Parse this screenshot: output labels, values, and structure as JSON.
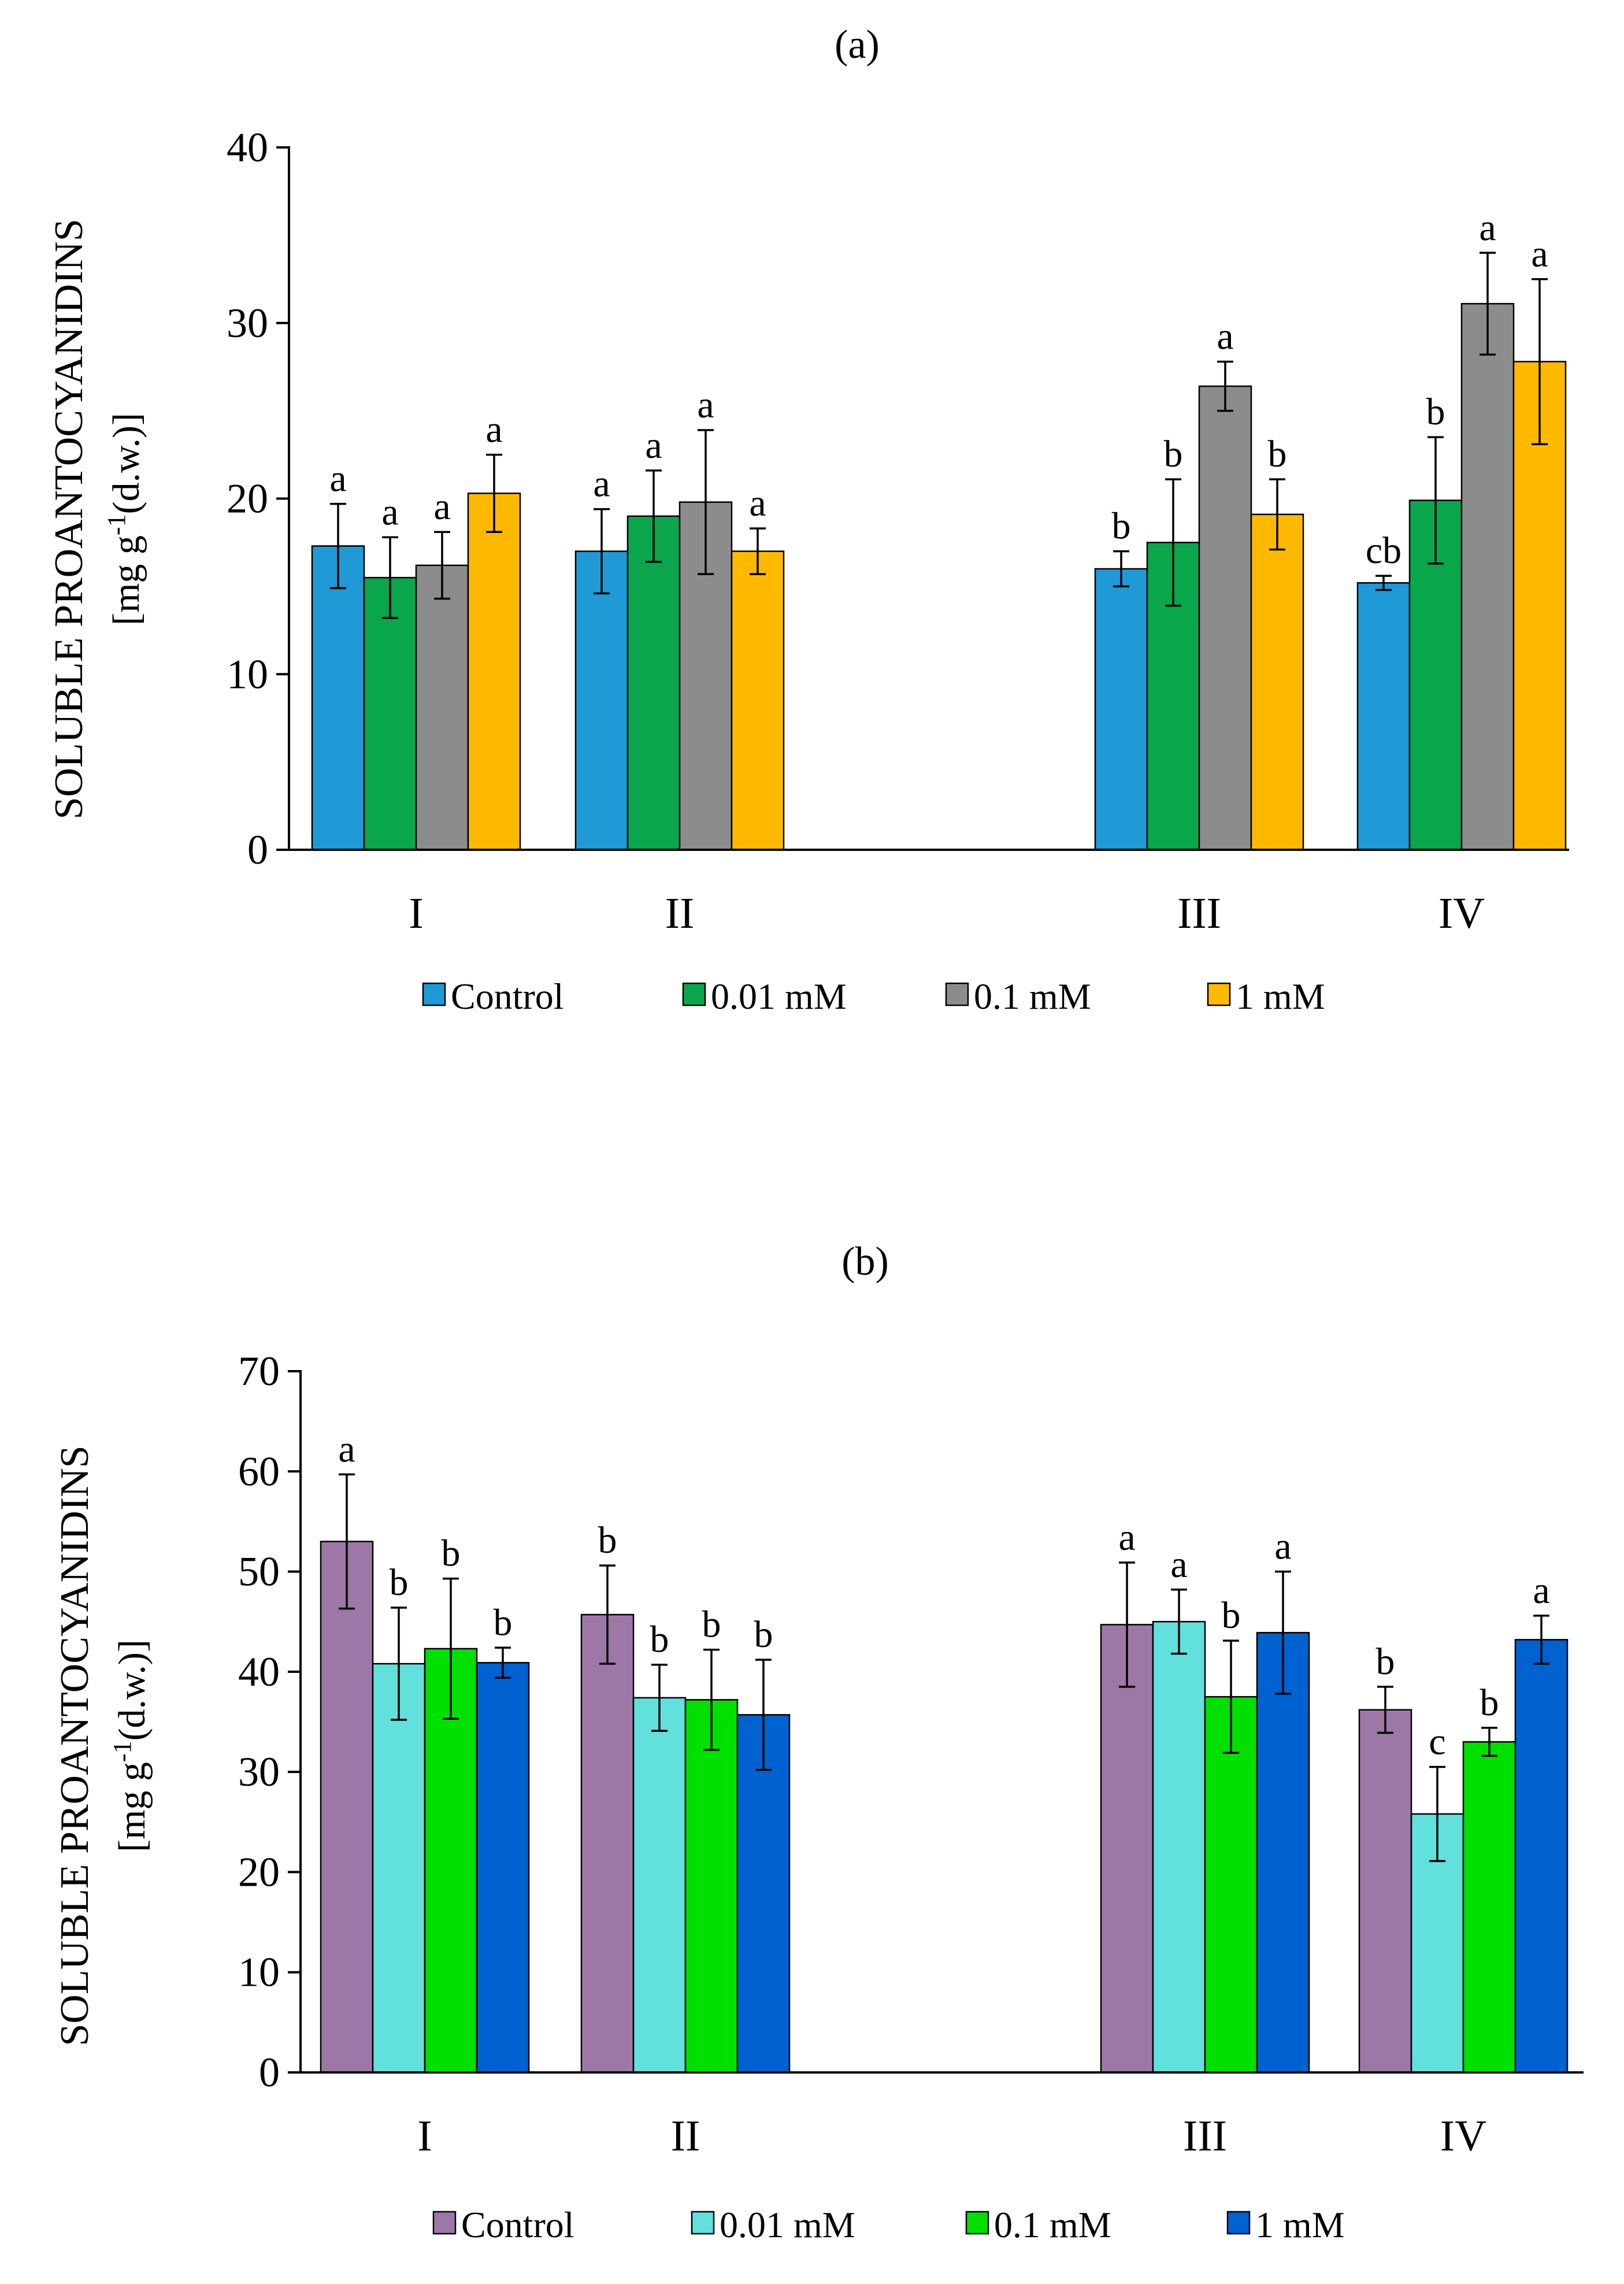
{
  "chart_data": [
    {
      "type": "bar",
      "title": "(a)",
      "ylabel_line1": "SOLUBLE PROANTOCYANIDINS",
      "ylabel_line2_prefix": "[mg g",
      "ylabel_line2_sup": "-1",
      "ylabel_line2_suffix": "(d.w.)]",
      "ylim": [
        0,
        40
      ],
      "yticks": [
        "0",
        "10",
        "20",
        "30",
        "40"
      ],
      "categories": [
        "I",
        "II",
        "III",
        "IV"
      ],
      "grid": false,
      "legend_position": "bottom",
      "series": [
        {
          "name": "Control",
          "color": "#1f9ad6",
          "values": [
            17.3,
            17.0,
            16.0,
            15.2
          ],
          "errors": [
            2.4,
            2.4,
            1.0,
            0.4
          ],
          "labels": [
            "a",
            "a",
            "b",
            "cb"
          ]
        },
        {
          "name": "0.01 mM",
          "color": "#0aa64c",
          "values": [
            15.5,
            19.0,
            17.5,
            19.9
          ],
          "errors": [
            2.3,
            2.6,
            3.6,
            3.6
          ],
          "labels": [
            "a",
            "a",
            "b",
            "b"
          ]
        },
        {
          "name": "0.1 mM",
          "color": "#8c8c8c",
          "values": [
            16.2,
            19.8,
            26.4,
            31.1
          ],
          "errors": [
            1.9,
            4.1,
            1.4,
            2.9
          ],
          "labels": [
            "a",
            "a",
            "a",
            "a"
          ]
        },
        {
          "name": "1 mM",
          "color": "#ffba00",
          "values": [
            20.3,
            17.0,
            19.1,
            27.8
          ],
          "errors": [
            2.2,
            1.3,
            2.0,
            4.7
          ],
          "labels": [
            "a",
            "a",
            "b",
            "a"
          ]
        }
      ]
    },
    {
      "type": "bar",
      "title": "(b)",
      "ylabel_line1": "SOLUBLE PROANTOCYANIDINS",
      "ylabel_line2_prefix": "[mg g",
      "ylabel_line2_sup": "-1",
      "ylabel_line2_suffix": "(d.w.)]",
      "ylim": [
        0,
        70
      ],
      "yticks": [
        "0",
        "10",
        "20",
        "30",
        "40",
        "50",
        "60",
        "70"
      ],
      "categories": [
        "I",
        "II",
        "III",
        "IV"
      ],
      "grid": false,
      "legend_position": "bottom",
      "series": [
        {
          "name": "Control",
          "color": "#9d78a6",
          "values": [
            53.0,
            45.7,
            44.7,
            36.2
          ],
          "errors": [
            6.7,
            4.9,
            6.2,
            2.3
          ],
          "labels": [
            "a",
            "b",
            "a",
            "b"
          ]
        },
        {
          "name": "0.01 mM",
          "color": "#62e0dc",
          "values": [
            40.8,
            37.4,
            45.0,
            25.8
          ],
          "errors": [
            5.6,
            3.3,
            3.2,
            4.7
          ],
          "labels": [
            "b",
            "b",
            "a",
            "c"
          ]
        },
        {
          "name": "0.1 mM",
          "color": "#00e000",
          "values": [
            42.3,
            37.2,
            37.5,
            33.0
          ],
          "errors": [
            7.0,
            5.0,
            5.6,
            1.4
          ],
          "labels": [
            "b",
            "b",
            "b",
            "b"
          ]
        },
        {
          "name": "1 mM",
          "color": "#0061d0",
          "values": [
            40.9,
            35.7,
            43.9,
            43.2
          ],
          "errors": [
            1.5,
            5.5,
            6.1,
            2.4
          ],
          "labels": [
            "b",
            "b",
            "a",
            "a"
          ]
        }
      ]
    }
  ]
}
